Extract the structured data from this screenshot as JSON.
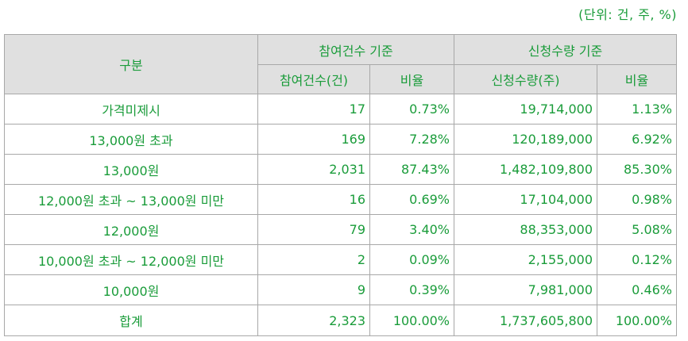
{
  "unit_note": "(단위: 건, 주, %)",
  "header": {
    "category": "구분",
    "group_count": "참여건수 기준",
    "group_shares": "신청수량 기준",
    "col_count": "참여건수(건)",
    "col_count_ratio": "비율",
    "col_shares": "신청수량(주)",
    "col_shares_ratio": "비율"
  },
  "rows": [
    {
      "label": "가격미제시",
      "count": "17",
      "count_ratio": "0.73%",
      "shares": "19,714,000",
      "shares_ratio": "1.13%"
    },
    {
      "label": "13,000원 초과",
      "count": "169",
      "count_ratio": "7.28%",
      "shares": "120,189,000",
      "shares_ratio": "6.92%"
    },
    {
      "label": "13,000원",
      "count": "2,031",
      "count_ratio": "87.43%",
      "shares": "1,482,109,800",
      "shares_ratio": "85.30%"
    },
    {
      "label": "12,000원 초과 ~ 13,000원 미만",
      "count": "16",
      "count_ratio": "0.69%",
      "shares": "17,104,000",
      "shares_ratio": "0.98%"
    },
    {
      "label": "12,000원",
      "count": "79",
      "count_ratio": "3.40%",
      "shares": "88,353,000",
      "shares_ratio": "5.08%"
    },
    {
      "label": "10,000원 초과 ~ 12,000원 미만",
      "count": "2",
      "count_ratio": "0.09%",
      "shares": "2,155,000",
      "shares_ratio": "0.12%"
    },
    {
      "label": "10,000원",
      "count": "9",
      "count_ratio": "0.39%",
      "shares": "7,981,000",
      "shares_ratio": "0.46%"
    }
  ],
  "total": {
    "label": "합계",
    "count": "2,323",
    "count_ratio": "100.00%",
    "shares": "1,737,605,800",
    "shares_ratio": "100.00%"
  }
}
